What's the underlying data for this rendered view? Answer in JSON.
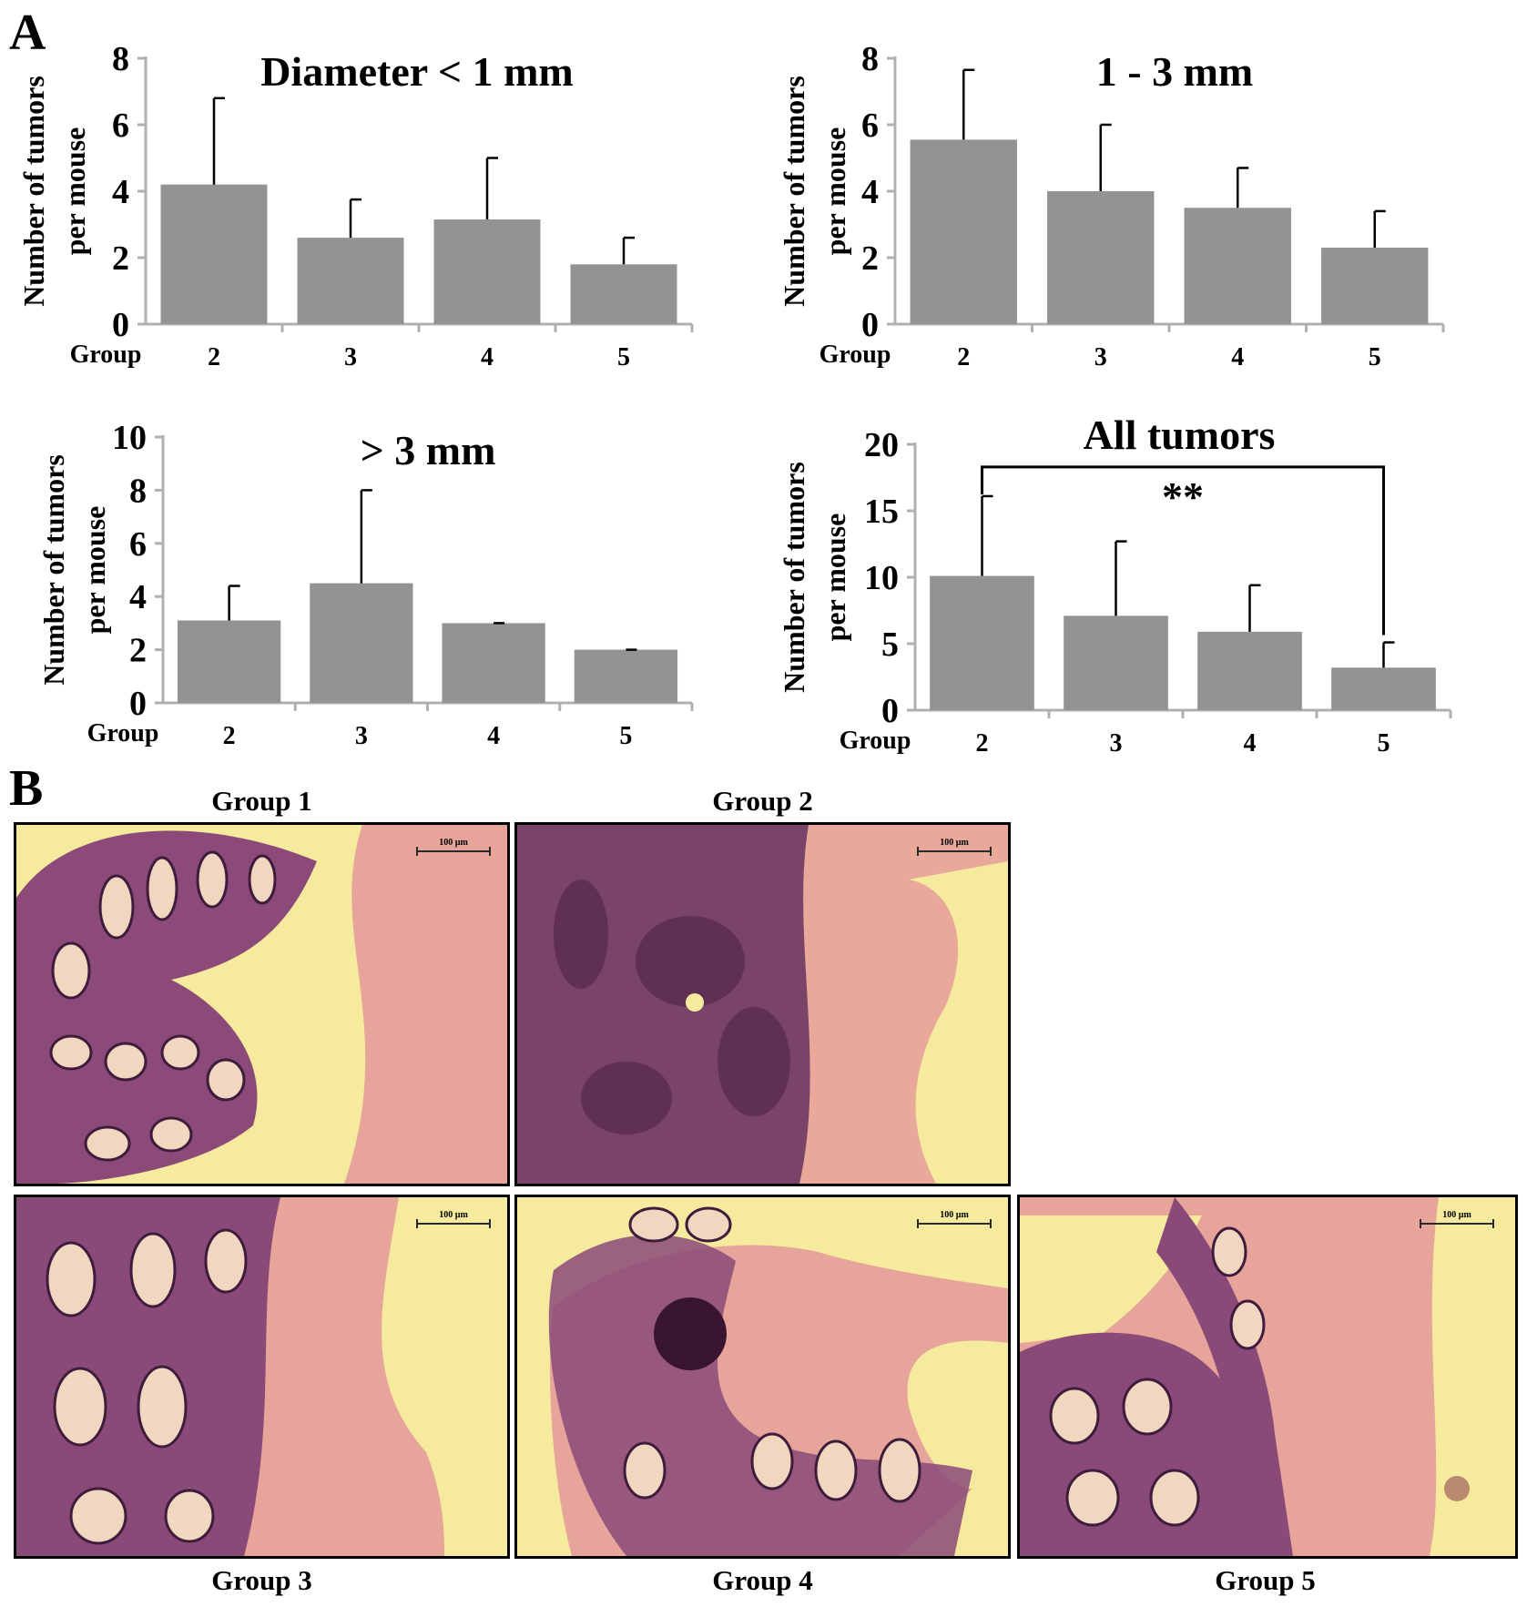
{
  "panel_labels": {
    "a": "A",
    "b": "B"
  },
  "colors": {
    "bar": "#939393",
    "axis": "#b0b0b0",
    "text": "#000000"
  },
  "chart_data": [
    {
      "type": "bar",
      "title": "Diameter  < 1 mm",
      "ylabel": "Number of tumors per mouse",
      "xlabel": "Group",
      "categories": [
        "2",
        "3",
        "4",
        "5"
      ],
      "values": [
        4.2,
        2.6,
        3.15,
        1.8
      ],
      "error_plus": [
        2.6,
        1.15,
        1.85,
        0.8
      ],
      "ylim": [
        0,
        8
      ],
      "yticks": [
        0,
        2,
        4,
        6,
        8
      ],
      "ytick_labels": [
        "0",
        "2",
        "4",
        "6",
        "8"
      ]
    },
    {
      "type": "bar",
      "title": "1 - 3 mm",
      "ylabel": "Number of tumors per mouse",
      "xlabel": "Group",
      "categories": [
        "2",
        "3",
        "4",
        "5"
      ],
      "values": [
        5.55,
        4.0,
        3.5,
        2.3
      ],
      "error_plus": [
        2.1,
        2.0,
        1.2,
        1.1
      ],
      "ylim": [
        0,
        8
      ],
      "yticks": [
        0,
        2,
        4,
        6,
        8
      ],
      "ytick_labels": [
        "0",
        "2",
        "4",
        "6",
        "8"
      ]
    },
    {
      "type": "bar",
      "title": "> 3 mm",
      "ylabel": "Number of tumors per mouse",
      "xlabel": "Group",
      "categories": [
        "2",
        "3",
        "4",
        "5"
      ],
      "values": [
        3.1,
        4.5,
        3.0,
        2.0
      ],
      "error_plus": [
        1.3,
        3.5,
        0.0,
        0.0
      ],
      "ylim": [
        0,
        10
      ],
      "yticks": [
        0,
        2,
        4,
        6,
        8,
        10
      ],
      "ytick_labels": [
        "0",
        "2",
        "4",
        "6",
        "8",
        "10"
      ]
    },
    {
      "type": "bar",
      "title": "All tumors",
      "ylabel": "Number of tumors per mouse",
      "xlabel": "Group",
      "categories": [
        "2",
        "3",
        "4",
        "5"
      ],
      "values": [
        10.1,
        7.1,
        5.9,
        3.2
      ],
      "error_plus": [
        6.0,
        5.6,
        3.5,
        1.9
      ],
      "ylim": [
        0,
        20
      ],
      "yticks": [
        0,
        5,
        10,
        15,
        20
      ],
      "ytick_labels": [
        "0",
        "5",
        "10",
        "15",
        "20"
      ],
      "significance": {
        "from": "2",
        "to": "5",
        "label": "**"
      }
    }
  ],
  "micrographs": [
    {
      "caption": "Group 1",
      "scale": "100 µm"
    },
    {
      "caption": "Group 2",
      "scale": "100 µm"
    },
    {
      "caption": "Group 3",
      "scale": "100 µm"
    },
    {
      "caption": "Group 4",
      "scale": "100 µm"
    },
    {
      "caption": "Group 5",
      "scale": "100 µm"
    }
  ]
}
